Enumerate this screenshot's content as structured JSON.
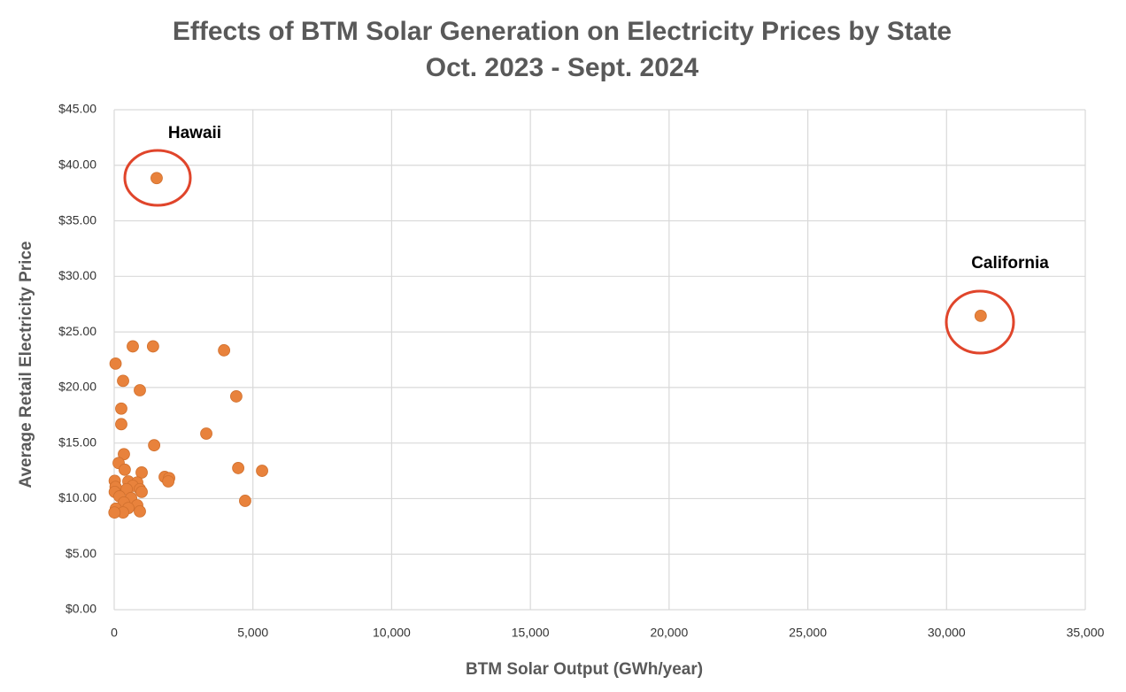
{
  "chart_data": {
    "type": "scatter",
    "title": "Effects of BTM Solar Generation on Electricity Prices by State",
    "subtitle": "Oct. 2023 - Sept. 2024",
    "x_label": "BTM Solar Output (GWh/year)",
    "y_label": "Average Retail Electricity Price",
    "annotations": [
      {
        "text": "Hawaii"
      },
      {
        "text": "California"
      }
    ],
    "color": "#e8823c",
    "grid": true,
    "x": [
      1530,
      31230,
      670,
      1400,
      3960,
      50,
      320,
      925,
      4400,
      255,
      255,
      3320,
      1440,
      350,
      160,
      380,
      4470,
      5330,
      990,
      1820,
      1980,
      1950,
      20,
      510,
      830,
      50,
      670,
      450,
      20,
      925,
      990,
      190,
      610,
      4720,
      350,
      830,
      60,
      510,
      925,
      320,
      10
    ],
    "values": [
      38.85,
      26.45,
      23.7,
      23.7,
      23.35,
      22.15,
      20.6,
      19.75,
      19.2,
      18.1,
      16.7,
      15.85,
      14.8,
      14.0,
      13.2,
      12.6,
      12.75,
      12.5,
      12.35,
      11.95,
      11.85,
      11.55,
      11.6,
      11.55,
      11.45,
      11.05,
      11.15,
      10.85,
      10.6,
      10.85,
      10.6,
      10.2,
      10.05,
      9.8,
      9.65,
      9.4,
      9.1,
      9.15,
      8.85,
      8.75,
      8.75
    ],
    "xlim": [
      0,
      35000
    ],
    "xticks": [
      0,
      {
        "value": 5000,
        "label": "5,000"
      },
      {
        "value": 10000,
        "label": "10,000"
      },
      {
        "value": 15000,
        "label": "15,000"
      },
      {
        "value": 20000,
        "label": "20,000"
      },
      {
        "value": 25000,
        "label": "25,000"
      },
      {
        "value": 30000,
        "label": "30,000"
      },
      {
        "value": 35000,
        "label": "35,000"
      }
    ],
    "ylim": [
      0,
      45
    ],
    "yticks": [
      {
        "value": 0,
        "label": "$0.00"
      },
      {
        "value": 5,
        "label": "$5.00"
      },
      {
        "value": 10,
        "label": "$10.00"
      },
      {
        "value": 15,
        "label": "$15.00"
      },
      {
        "value": 20,
        "label": "$20.00"
      },
      {
        "value": 25,
        "label": "$25.00"
      },
      {
        "value": 30,
        "label": "$30.00"
      },
      {
        "value": 35,
        "label": "$35.00"
      },
      {
        "value": 40,
        "label": "$40.00"
      },
      {
        "value": 45,
        "label": "$45.00"
      }
    ]
  }
}
